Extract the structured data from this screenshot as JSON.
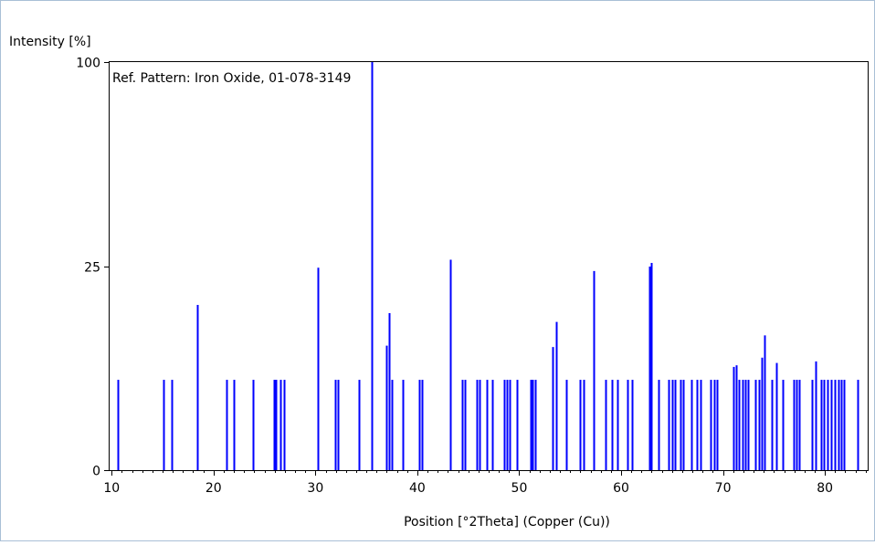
{
  "chart_data": {
    "type": "bar",
    "title": "Ref. Pattern: Iron Oxide, 01-078-3149",
    "ylabel": "Intensity [%]",
    "xlabel": "Position [°2Theta] (Copper (Cu))",
    "xlim": [
      9.8,
      84.2
    ],
    "ylim": [
      0,
      100
    ],
    "y_scale": "sqrt",
    "x_ticks": [
      10,
      20,
      30,
      40,
      50,
      60,
      70,
      80
    ],
    "y_ticks": [
      0,
      25,
      100
    ],
    "grid": false,
    "legend": "none",
    "bar_color": "#0000ff",
    "series": [
      {
        "x": [
          10.6,
          15.1,
          15.9,
          18.4,
          21.3,
          22.0,
          23.9,
          25.9,
          26.1,
          26.6,
          26.9,
          30.2,
          31.9,
          32.2,
          34.3,
          35.5,
          37.0,
          37.2,
          37.5,
          38.6,
          40.2,
          40.5,
          43.2,
          44.4,
          44.7,
          45.8,
          46.1,
          46.8,
          47.4,
          48.5,
          48.8,
          49.1,
          49.8,
          51.1,
          51.3,
          51.6,
          53.3,
          53.6,
          54.6,
          56.0,
          56.3,
          57.3,
          58.5,
          59.1,
          59.6,
          60.6,
          61.1,
          62.8,
          63.0,
          63.7,
          64.7,
          65.0,
          65.3,
          65.8,
          66.1,
          66.9,
          67.4,
          67.8,
          68.8,
          69.1,
          69.4,
          71.0,
          71.3,
          71.6,
          71.9,
          72.2,
          72.5,
          73.2,
          73.5,
          73.8,
          74.1,
          74.8,
          75.2,
          75.9,
          76.9,
          77.2,
          77.5,
          78.7,
          79.1,
          79.6,
          79.9,
          80.3,
          80.6,
          81.0,
          81.3,
          81.6,
          81.9,
          83.2
        ],
        "values": [
          4.9,
          4.9,
          4.9,
          16.4,
          4.9,
          4.9,
          4.9,
          4.9,
          4.9,
          4.9,
          4.9,
          24.6,
          4.9,
          4.9,
          4.9,
          100,
          9.3,
          14.8,
          4.9,
          4.9,
          4.9,
          4.9,
          26.6,
          4.9,
          4.9,
          4.9,
          4.9,
          4.9,
          4.9,
          4.9,
          4.9,
          4.9,
          4.9,
          4.9,
          4.9,
          4.9,
          9.1,
          13.2,
          4.9,
          4.9,
          4.9,
          23.8,
          4.9,
          4.9,
          4.9,
          4.9,
          4.9,
          24.9,
          25.8,
          4.9,
          4.9,
          4.9,
          4.9,
          4.9,
          4.9,
          4.9,
          4.9,
          4.9,
          4.9,
          4.9,
          4.9,
          6.4,
          6.6,
          4.9,
          4.9,
          4.9,
          4.9,
          4.9,
          4.9,
          7.6,
          10.9,
          4.9,
          6.9,
          4.9,
          4.9,
          4.9,
          4.9,
          4.9,
          7.1,
          4.9,
          4.9,
          4.9,
          4.9,
          4.9,
          4.9,
          4.9,
          4.9,
          4.9
        ]
      }
    ]
  },
  "colors": {
    "frame_border": "#a9bfd6",
    "axis": "#000000",
    "bars": "#0000ff"
  }
}
